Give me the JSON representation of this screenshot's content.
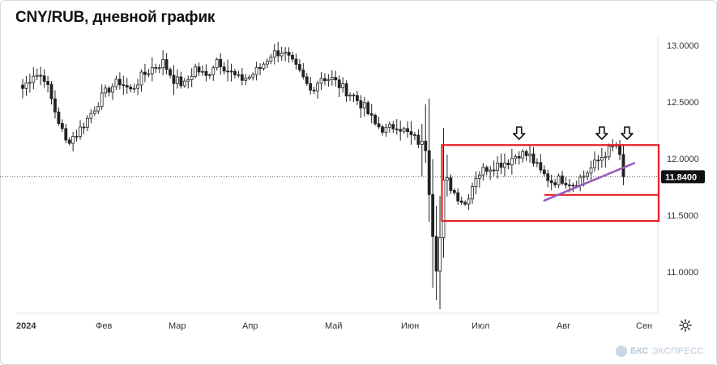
{
  "title": "CNY/RUB, дневной график",
  "brand": {
    "prefix": "БКС",
    "suffix": "ЭКСПРЕСС"
  },
  "icons": {
    "settings": "gear-icon",
    "brand": "bks-logo-icon"
  },
  "colors": {
    "up": "#222222",
    "down": "#222222",
    "annotation_box": "#e8202a",
    "trendline": "#9b59b6",
    "price_label_bg": "#111111"
  },
  "chart_data": {
    "type": "candlestick",
    "title": "CNY/RUB, дневной график",
    "ylim": [
      10.75,
      13.1
    ],
    "y_ticks": [
      "13.0000",
      "12.5000",
      "12.0000",
      "11.5000",
      "11.0000"
    ],
    "y_tick_values": [
      13.0,
      12.5,
      12.0,
      11.5,
      11.0
    ],
    "x_ticks": [
      "2024",
      "Фев",
      "Мар",
      "Апр",
      "Май",
      "Июн",
      "Июл",
      "Авг",
      "Сен"
    ],
    "last_price": 11.84,
    "last_price_label": "11.8400",
    "grid": false,
    "anchors": [
      [
        0,
        12.62
      ],
      [
        3,
        12.75
      ],
      [
        6,
        12.72
      ],
      [
        9,
        12.42
      ],
      [
        12,
        12.15
      ],
      [
        15,
        12.22
      ],
      [
        18,
        12.35
      ],
      [
        21,
        12.5
      ],
      [
        24,
        12.62
      ],
      [
        27,
        12.68
      ],
      [
        30,
        12.6
      ],
      [
        33,
        12.72
      ],
      [
        36,
        12.8
      ],
      [
        39,
        12.85
      ],
      [
        42,
        12.7
      ],
      [
        45,
        12.65
      ],
      [
        48,
        12.8
      ],
      [
        51,
        12.72
      ],
      [
        54,
        12.88
      ],
      [
        57,
        12.78
      ],
      [
        60,
        12.7
      ],
      [
        63,
        12.72
      ],
      [
        66,
        12.8
      ],
      [
        69,
        12.92
      ],
      [
        72,
        12.95
      ],
      [
        74,
        12.88
      ],
      [
        77,
        12.75
      ],
      [
        80,
        12.6
      ],
      [
        83,
        12.72
      ],
      [
        86,
        12.7
      ],
      [
        89,
        12.62
      ],
      [
        92,
        12.55
      ],
      [
        95,
        12.45
      ],
      [
        98,
        12.3
      ],
      [
        101,
        12.25
      ],
      [
        104,
        12.3
      ],
      [
        107,
        12.22
      ],
      [
        110,
        12.15
      ],
      [
        112,
        12.1
      ],
      [
        114,
        11.35
      ],
      [
        115,
        11.05
      ],
      [
        116,
        11.3
      ],
      [
        117,
        11.78
      ],
      [
        118,
        11.8
      ],
      [
        120,
        11.7
      ],
      [
        123,
        11.6
      ],
      [
        126,
        11.85
      ],
      [
        129,
        11.92
      ],
      [
        132,
        11.95
      ],
      [
        135,
        11.98
      ],
      [
        138,
        12.05
      ],
      [
        141,
        12.02
      ],
      [
        144,
        11.88
      ],
      [
        147,
        11.8
      ],
      [
        150,
        11.82
      ],
      [
        153,
        11.78
      ],
      [
        156,
        11.85
      ],
      [
        159,
        11.95
      ],
      [
        162,
        12.05
      ],
      [
        165,
        12.12
      ],
      [
        166,
        12.0
      ],
      [
        167,
        11.84
      ]
    ]
  },
  "annotations": {
    "box": {
      "top": 12.12,
      "bottom": 11.45,
      "start_index": 117
    },
    "resistance_line": 12.12,
    "support_line": 11.68,
    "trendline": {
      "from": [
        145,
        11.63
      ],
      "to": [
        170,
        11.96
      ]
    },
    "arrows": [
      138,
      161,
      168
    ]
  }
}
